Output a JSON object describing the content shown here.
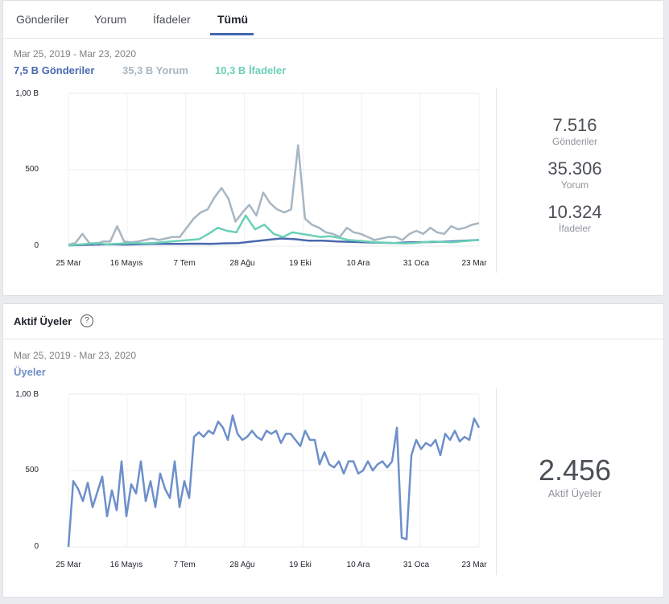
{
  "tabs": [
    {
      "label": "Gönderiler",
      "active": false
    },
    {
      "label": "Yorum",
      "active": false
    },
    {
      "label": "İfadeler",
      "active": false
    },
    {
      "label": "Tümü",
      "active": true
    }
  ],
  "engagement": {
    "date_range": "Mar 25, 2019 - Mar 23, 2020",
    "legend": [
      {
        "value": "7,5 B",
        "label": "Gönderiler",
        "color": "#4a68b0"
      },
      {
        "value": "35,3 B",
        "label": "Yorum",
        "color": "#a7b6c2"
      },
      {
        "value": "10,3 B",
        "label": "İfadeler",
        "color": "#6bd0b6"
      }
    ],
    "stats": [
      {
        "value": "7.516",
        "label": "Gönderiler"
      },
      {
        "value": "35.306",
        "label": "Yorum"
      },
      {
        "value": "10.324",
        "label": "İfadeler"
      }
    ]
  },
  "active_members": {
    "title": "Aktif Üyeler",
    "help_icon": "question-circle-icon",
    "date_range": "Mar 25, 2019 - Mar 23, 2020",
    "legend_label": "Üyeler",
    "stat_value": "2.456",
    "stat_label": "Aktif Üyeler"
  },
  "chart_data": [
    {
      "type": "line",
      "y_ticks": [
        "1,00 B",
        "500",
        "0"
      ],
      "ylim": [
        0,
        1000
      ],
      "x_ticks": [
        "25 Mar",
        "16 Mayıs",
        "7 Tem",
        "28 Ağu",
        "19 Eki",
        "10 Ara",
        "31 Oca",
        "23 Mar"
      ],
      "grid": true,
      "series": [
        {
          "name": "Gönderiler",
          "color": "#4a68b0",
          "values": [
            5,
            8,
            10,
            12,
            10,
            12,
            15,
            14,
            15,
            16,
            15,
            18,
            20,
            30,
            40,
            50,
            45,
            35,
            35,
            30,
            28,
            25,
            22,
            20,
            24,
            26,
            28,
            30,
            35,
            40
          ]
        },
        {
          "name": "Yorum",
          "color": "#a7b6c2",
          "values": [
            10,
            20,
            80,
            20,
            15,
            30,
            30,
            130,
            30,
            25,
            30,
            40,
            50,
            40,
            50,
            60,
            60,
            120,
            180,
            220,
            240,
            320,
            380,
            310,
            160,
            220,
            270,
            200,
            350,
            280,
            240,
            220,
            240,
            660,
            180,
            140,
            120,
            90,
            80,
            60,
            120,
            90,
            80,
            60,
            40,
            50,
            60,
            60,
            40,
            80,
            100,
            80,
            120,
            90,
            80,
            130,
            110,
            120,
            140,
            150
          ]
        },
        {
          "name": "İfadeler",
          "color": "#6bd0b6",
          "values": [
            5,
            10,
            15,
            20,
            12,
            15,
            18,
            20,
            18,
            20,
            25,
            30,
            35,
            40,
            45,
            80,
            120,
            100,
            90,
            200,
            110,
            140,
            80,
            60,
            90,
            80,
            70,
            60,
            65,
            55,
            40,
            35,
            30,
            25,
            22,
            20,
            18,
            20,
            25,
            30,
            28,
            25,
            30,
            35,
            40
          ]
        }
      ]
    },
    {
      "type": "line",
      "y_ticks": [
        "1,00 B",
        "500",
        "0"
      ],
      "ylim": [
        0,
        1000
      ],
      "x_ticks": [
        "25 Mar",
        "16 Mayıs",
        "7 Tem",
        "28 Ağu",
        "19 Eki",
        "10 Ara",
        "31 Oca",
        "23 Mar"
      ],
      "grid": true,
      "series": [
        {
          "name": "Üyeler",
          "color": "#6d8fca",
          "values": [
            0,
            430,
            380,
            300,
            420,
            260,
            360,
            460,
            200,
            370,
            240,
            560,
            200,
            410,
            350,
            560,
            300,
            430,
            260,
            480,
            380,
            320,
            560,
            260,
            430,
            320,
            720,
            750,
            720,
            760,
            740,
            820,
            780,
            700,
            860,
            740,
            700,
            720,
            760,
            720,
            700,
            760,
            740,
            760,
            680,
            740,
            740,
            700,
            660,
            760,
            700,
            700,
            540,
            620,
            540,
            520,
            560,
            480,
            560,
            560,
            480,
            500,
            560,
            500,
            540,
            560,
            520,
            560,
            780,
            60,
            50,
            600,
            700,
            640,
            680,
            660,
            700,
            600,
            740,
            700,
            760,
            690,
            720,
            700,
            840,
            780
          ]
        }
      ]
    }
  ]
}
